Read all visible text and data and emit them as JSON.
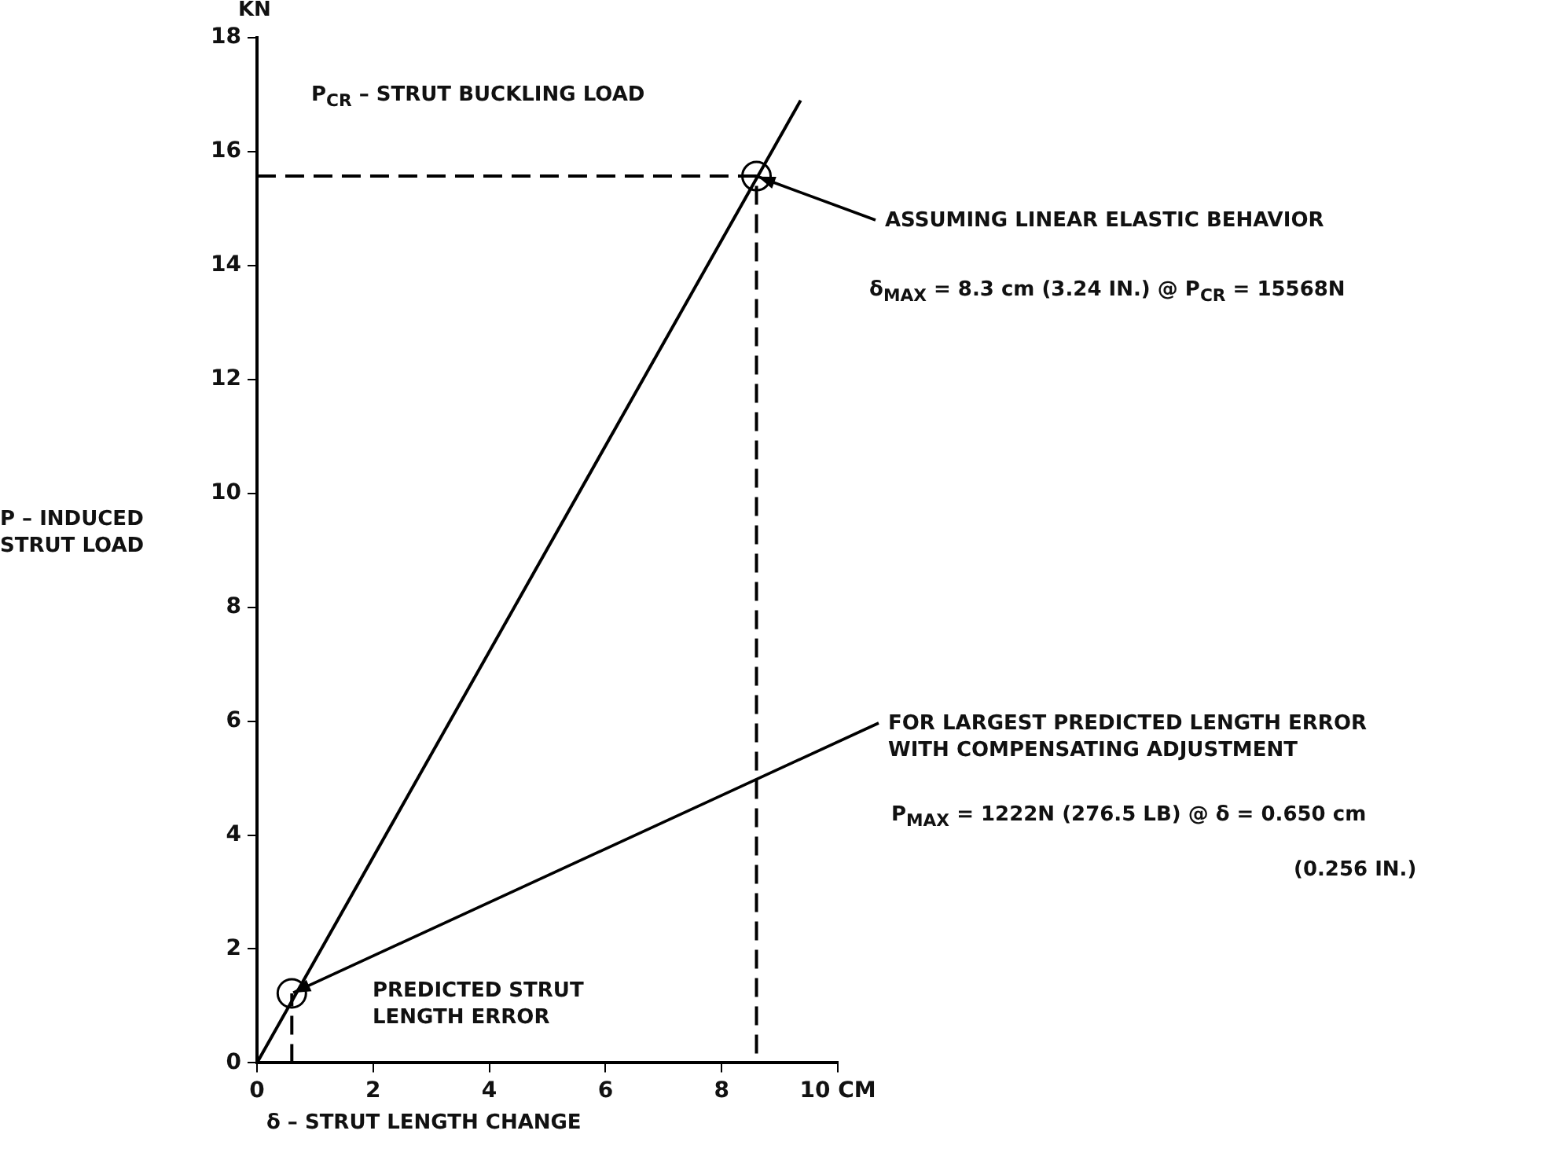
{
  "chart_data": {
    "type": "line",
    "xlabel": "δ – STRUT LENGTH CHANGE",
    "ylabel": "P – INDUCED\nSTRUT LOAD",
    "xlim": [
      0,
      10
    ],
    "xticks": [
      0,
      2,
      4,
      6,
      8,
      {
        "value": 10,
        "label": "10 CM"
      }
    ],
    "ylim": [
      0,
      18
    ],
    "yticks": [
      0,
      2,
      4,
      6,
      8,
      10,
      12,
      14,
      16,
      18
    ],
    "grid": false,
    "legend": false,
    "series": [
      {
        "type": "line",
        "color": "#000000",
        "line_style": "solid",
        "x": [
          0,
          9.36
        ],
        "values": [
          0,
          16.9
        ]
      },
      {
        "type": "line",
        "color": "#000000",
        "line_style": "dashed",
        "x": [
          0,
          8.6,
          8.6
        ],
        "values": [
          15.57,
          15.57,
          0
        ]
      },
      {
        "type": "line",
        "color": "#000000",
        "line_style": "dashed",
        "x": [
          0.6,
          0.6
        ],
        "values": [
          0,
          1.22
        ]
      },
      {
        "type": "scatter",
        "color": "#000000",
        "marker": "circle",
        "x": [
          0.6,
          8.6
        ],
        "values": [
          1.22,
          15.57
        ]
      }
    ],
    "annotations": [
      "KN",
      "P$_{CR}$ – STRUT BUCKLING LOAD",
      {
        "text": "ASSUMING LINEAR ELASTIC BEHAVIOR",
        "x": 8.6,
        "y": 15.57
      },
      "δ$_{MAX}$ = 8.3 cm (3.24 IN.) @ P$_{CR}$ = 15568N",
      {
        "text": "FOR LARGEST PREDICTED LENGTH ERROR\nWITH COMPENSATING ADJUSTMENT",
        "x": 0.6,
        "y": 1.22
      },
      "P$_{MAX}$ = 1222N (276.5 LB) @ δ = 0.650 cm",
      "(0.256 IN.)",
      "PREDICTED STRUT\nLENGTH ERROR"
    ]
  }
}
